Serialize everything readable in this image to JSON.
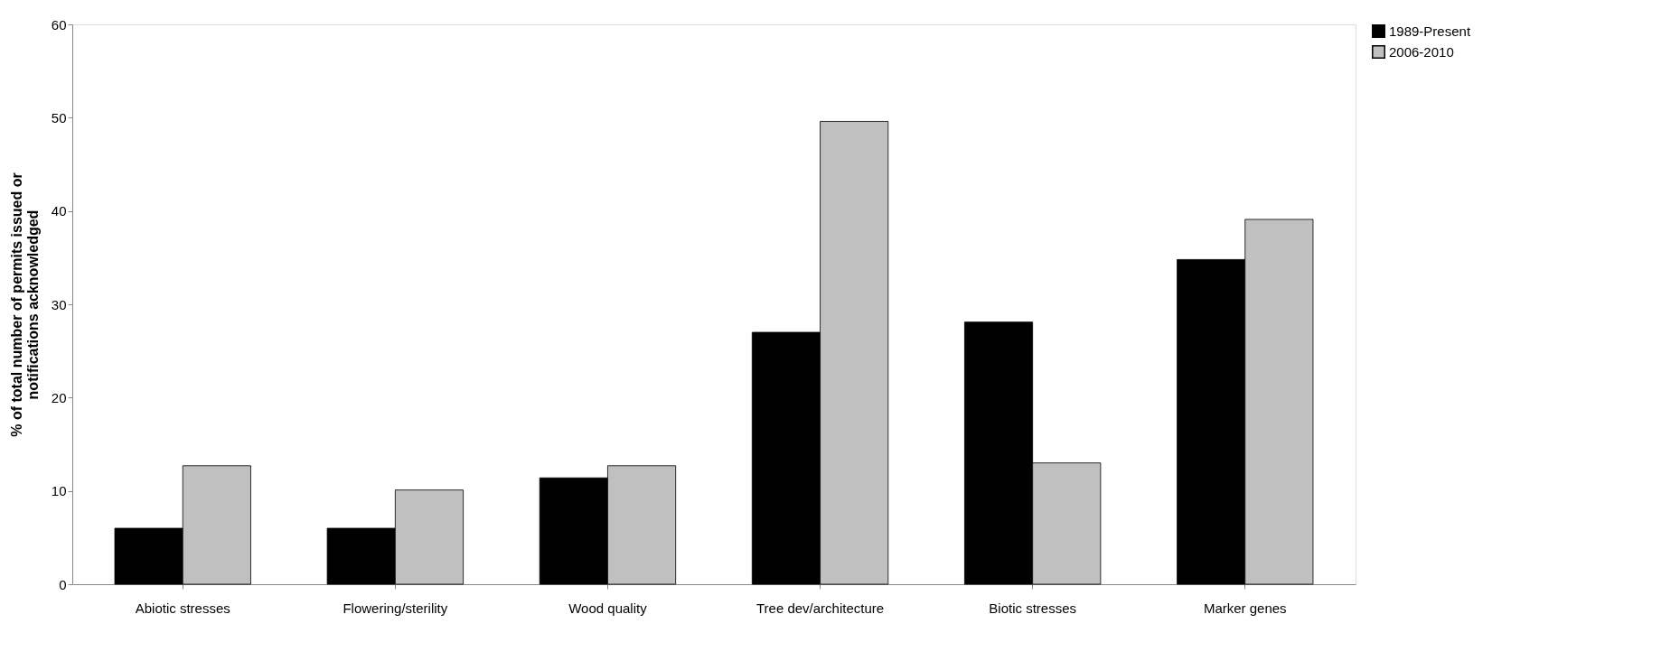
{
  "chart_data": {
    "type": "bar",
    "ylabel": "% of total number of permits issued or\nnotifications acknowledged",
    "categories": [
      "Abiotic stresses",
      "Flowering/sterility",
      "Wood quality",
      "Tree dev/architecture",
      "Biotic stresses",
      "Marker genes"
    ],
    "series": [
      {
        "name": "1989-Present",
        "color": "#000000",
        "values": [
          6,
          6,
          11.4,
          27,
          28.1,
          34.8
        ]
      },
      {
        "name": "2006-2010",
        "color": "#c0c0c0",
        "values": [
          12.7,
          10.1,
          12.7,
          49.6,
          13,
          39.1
        ]
      }
    ],
    "ylim": [
      0,
      60
    ],
    "yticks": [
      0,
      10,
      20,
      30,
      40,
      50,
      60
    ],
    "grid": false,
    "legend": "right"
  }
}
